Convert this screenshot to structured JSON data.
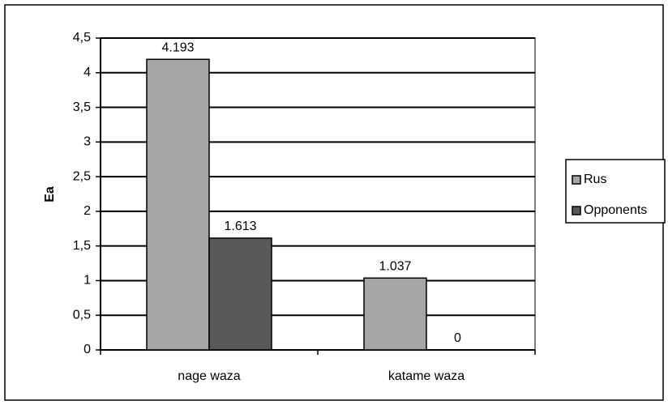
{
  "chart_data": {
    "type": "bar",
    "ylabel": "Ea",
    "categories": [
      "nage waza",
      "katame waza"
    ],
    "series": [
      {
        "name": "Rus",
        "color": "#a6a6a6",
        "values": [
          4.193,
          1.037
        ]
      },
      {
        "name": "Opponents",
        "color": "#595959",
        "values": [
          1.613,
          0
        ]
      }
    ],
    "ylim": [
      0,
      4.5
    ],
    "yticks": [
      0,
      {
        "value": 0.5,
        "label": "0,5"
      },
      1,
      {
        "value": 1.5,
        "label": "1,5"
      },
      2,
      {
        "value": 2.5,
        "label": "2,5"
      },
      3,
      {
        "value": 3.5,
        "label": "3,5"
      },
      4,
      {
        "value": 4.5,
        "label": "4,5"
      }
    ],
    "grid": true,
    "legend": "right"
  }
}
